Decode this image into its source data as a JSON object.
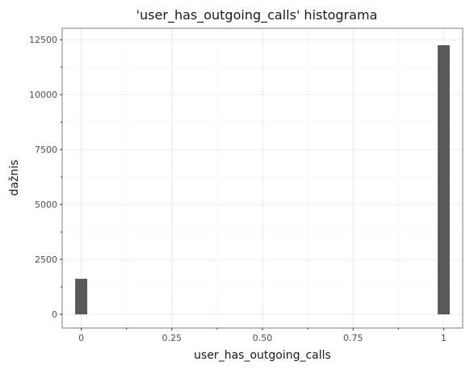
{
  "chart_data": {
    "type": "bar",
    "title": "'user_has_outgoing_calls' histograma",
    "xlabel": "user_has_outgoing_calls",
    "ylabel": "dažnis",
    "xlim": [
      -0.0525,
      1.0525
    ],
    "ylim": [
      -620,
      13020
    ],
    "x_ticks": [
      0,
      0.25,
      0.5,
      0.75,
      1
    ],
    "x_tick_labels": [
      "0",
      "0.25",
      "0.50",
      "0.75",
      "1"
    ],
    "y_ticks": [
      0,
      2500,
      5000,
      7500,
      10000,
      12500
    ],
    "y_tick_labels": [
      "0",
      "2500",
      "5000",
      "7500",
      "10000",
      "12500"
    ],
    "bars": [
      {
        "x": 0,
        "count": 1620
      },
      {
        "x": 1,
        "count": 12250
      }
    ],
    "bin_width": 0.0333,
    "bar_color": "#595959",
    "grid": true
  }
}
